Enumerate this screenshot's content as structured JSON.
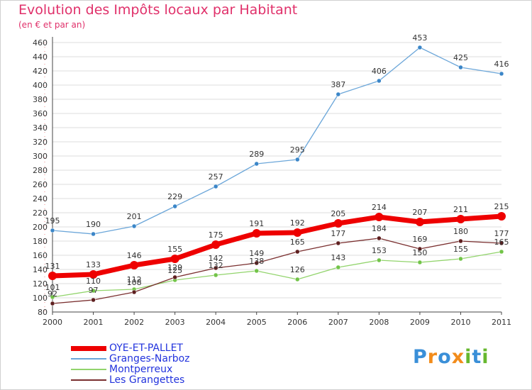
{
  "title": "Evolution des Impôts locaux par Habitant",
  "subtitle": "(en € et par an)",
  "brand": {
    "text": "Proxiti",
    "letter_colors": [
      "#3a8fd8",
      "#f28c1b",
      "#3a8fd8",
      "#f28c1b",
      "#66b82e",
      "#3a8fd8",
      "#66b82e"
    ]
  },
  "chart_data": {
    "type": "line",
    "x": [
      "2000",
      "2001",
      "2002",
      "2003",
      "2004",
      "2005",
      "2006",
      "2007",
      "2008",
      "2009",
      "2010",
      "2011"
    ],
    "ylim": [
      80,
      460
    ],
    "yticks": [
      80,
      100,
      120,
      140,
      160,
      180,
      200,
      220,
      240,
      260,
      280,
      300,
      320,
      340,
      360,
      380,
      400,
      420,
      440,
      460
    ],
    "grid": "horizontal",
    "legend_position": "bottom-left",
    "series": [
      {
        "name": "Granges-Narboz",
        "color": "#6ba6d9",
        "marker": "#3b86c8",
        "values": [
          195,
          190,
          201,
          229,
          257,
          289,
          295,
          387,
          406,
          453,
          425,
          416
        ]
      },
      {
        "name": "Montperreux",
        "color": "#92d46c",
        "marker": "#72c448",
        "values": [
          101,
          110,
          112,
          125,
          132,
          138,
          126,
          143,
          153,
          150,
          155,
          165
        ]
      },
      {
        "name": "Les Grangettes",
        "color": "#7a2f2f",
        "marker": "#5e1f1f",
        "values": [
          92,
          97,
          108,
          129,
          142,
          149,
          165,
          177,
          184,
          169,
          180,
          177
        ]
      },
      {
        "name": "OYE-ET-PALLET",
        "color": "#ee0000",
        "marker": "#ee0000",
        "values": [
          131,
          133,
          146,
          155,
          175,
          191,
          192,
          205,
          214,
          207,
          211,
          215
        ]
      }
    ],
    "data_labels": {
      "Granges-Narboz": [
        "195",
        "190",
        "201",
        "229",
        "257",
        "289",
        "295",
        "387",
        "406",
        "453",
        "425",
        "416"
      ],
      "Montperreux": [
        "101",
        "110",
        "112",
        "125",
        "132",
        "138",
        "126",
        "143",
        "153",
        "150",
        "155",
        "165"
      ],
      "Les Grangettes": [
        "92",
        "97",
        "108",
        "129",
        "142",
        "149",
        "165",
        "177",
        "184",
        "169",
        "180",
        "177"
      ],
      "OYE-ET-PALLET": [
        "131",
        "133",
        "146",
        "155",
        "175",
        "191",
        "192",
        "205",
        "214",
        "207",
        "211",
        "215"
      ]
    },
    "legend_order": [
      "OYE-ET-PALLET",
      "Granges-Narboz",
      "Montperreux",
      "Les Grangettes"
    ]
  }
}
